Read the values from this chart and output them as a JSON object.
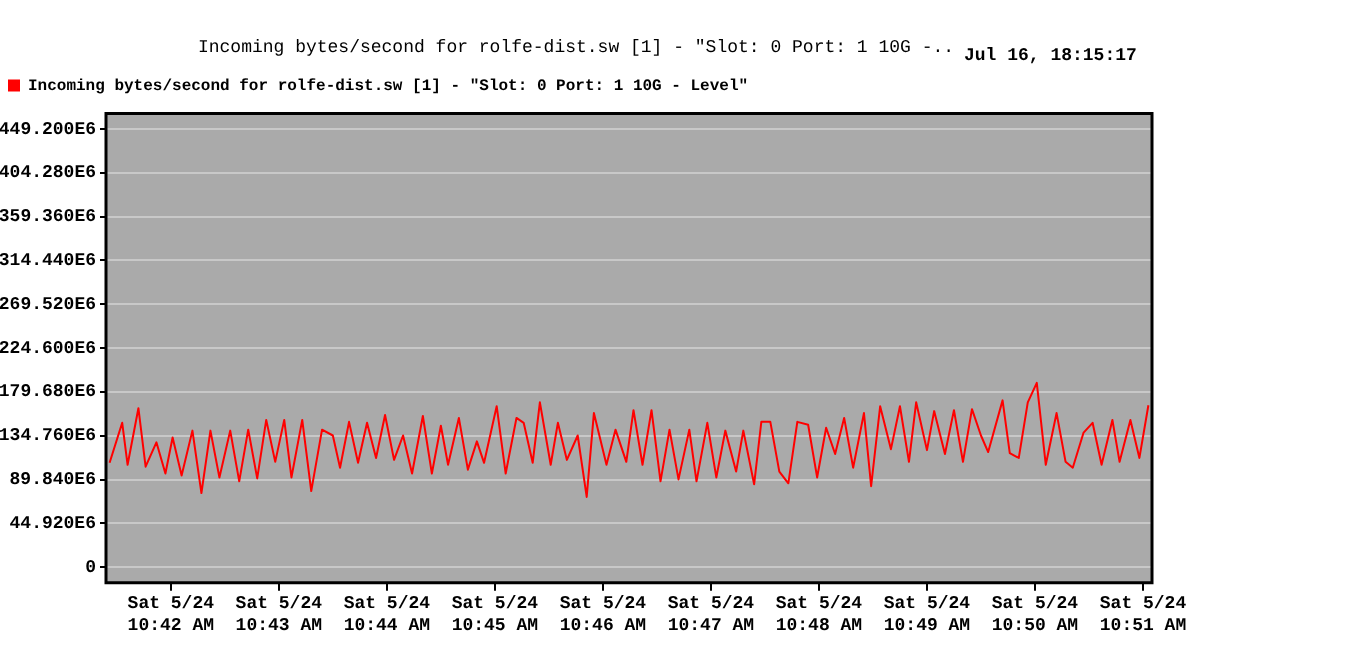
{
  "chart_data": {
    "type": "line",
    "title": "Incoming bytes/second for rolfe-dist.sw [1] - \"Slot: 0 Port: 1 10G -..",
    "annotations": [
      "Jul 16, 18:15:17"
    ],
    "xlim": [
      "--05-24T10:41:24",
      "--05-24T10:51:05"
    ],
    "xticks": [
      {
        "value": "--05-24T10:42",
        "label": "Sat 5/24\n10:42 AM"
      },
      {
        "value": "--05-24T10:43",
        "label": "Sat 5/24\n10:43 AM"
      },
      {
        "value": "--05-24T10:44",
        "label": "Sat 5/24\n10:44 AM"
      },
      {
        "value": "--05-24T10:45",
        "label": "Sat 5/24\n10:45 AM"
      },
      {
        "value": "--05-24T10:46",
        "label": "Sat 5/24\n10:46 AM"
      },
      {
        "value": "--05-24T10:47",
        "label": "Sat 5/24\n10:47 AM"
      },
      {
        "value": "--05-24T10:48",
        "label": "Sat 5/24\n10:48 AM"
      },
      {
        "value": "--05-24T10:49",
        "label": "Sat 5/24\n10:49 AM"
      },
      {
        "value": "--05-24T10:50",
        "label": "Sat 5/24\n10:50 AM"
      },
      {
        "value": "--05-24T10:51",
        "label": "Sat 5/24\n10:51 AM"
      }
    ],
    "ylim": [
      -16000000.0,
      465000000.0
    ],
    "yticks": [
      0,
      {
        "value": 44920000.0,
        "label": "44.920E6"
      },
      {
        "value": 89840000.0,
        "label": "89.840E6"
      },
      {
        "value": 134760000.0,
        "label": "134.760E6"
      },
      {
        "value": 179680000.0,
        "label": "179.680E6"
      },
      {
        "value": 224600000.0,
        "label": "224.600E6"
      },
      {
        "value": 269520000.0,
        "label": "269.520E6"
      },
      {
        "value": 314440000.0,
        "label": "314.440E6"
      },
      {
        "value": 359360000.0,
        "label": "359.360E6"
      },
      {
        "value": 404280000.0,
        "label": "404.280E6"
      },
      {
        "value": 449200000.0,
        "label": "449.200E6"
      }
    ],
    "grid": "y",
    "legend": "top left",
    "marker": "none",
    "line_style": "solid",
    "x": [
      "--05-24T10:41:26",
      "--05-24T10:41:33",
      "--05-24T10:41:36",
      "--05-24T10:41:42",
      "--05-24T10:41:46",
      "--05-24T10:41:52",
      "--05-24T10:41:57",
      "--05-24T10:42:01",
      "--05-24T10:42:06",
      "--05-24T10:42:12",
      "--05-24T10:42:17",
      "--05-24T10:42:22",
      "--05-24T10:42:27",
      "--05-24T10:42:33",
      "--05-24T10:42:38",
      "--05-24T10:42:43",
      "--05-24T10:42:48",
      "--05-24T10:42:53",
      "--05-24T10:42:58",
      "--05-24T10:43:03",
      "--05-24T10:43:07",
      "--05-24T10:43:13",
      "--05-24T10:43:18",
      "--05-24T10:43:24",
      "--05-24T10:43:30",
      "--05-24T10:43:34",
      "--05-24T10:43:39",
      "--05-24T10:43:44",
      "--05-24T10:43:49",
      "--05-24T10:43:54",
      "--05-24T10:43:59",
      "--05-24T10:44:04",
      "--05-24T10:44:09",
      "--05-24T10:44:14",
      "--05-24T10:44:20",
      "--05-24T10:44:25",
      "--05-24T10:44:30",
      "--05-24T10:44:34",
      "--05-24T10:44:40",
      "--05-24T10:44:45",
      "--05-24T10:44:50",
      "--05-24T10:44:54",
      "--05-24T10:45:01",
      "--05-24T10:45:06",
      "--05-24T10:45:12",
      "--05-24T10:45:16",
      "--05-24T10:45:21",
      "--05-24T10:45:25",
      "--05-24T10:45:31",
      "--05-24T10:45:35",
      "--05-24T10:45:40",
      "--05-24T10:45:46",
      "--05-24T10:45:51",
      "--05-24T10:45:55",
      "--05-24T10:46:02",
      "--05-24T10:46:07",
      "--05-24T10:46:13",
      "--05-24T10:46:17",
      "--05-24T10:46:22",
      "--05-24T10:46:27",
      "--05-24T10:46:32",
      "--05-24T10:46:37",
      "--05-24T10:46:42",
      "--05-24T10:46:48",
      "--05-24T10:46:52",
      "--05-24T10:46:58",
      "--05-24T10:47:03",
      "--05-24T10:47:08",
      "--05-24T10:47:14",
      "--05-24T10:47:18",
      "--05-24T10:47:24",
      "--05-24T10:47:28",
      "--05-24T10:47:33",
      "--05-24T10:47:38",
      "--05-24T10:47:43",
      "--05-24T10:47:48",
      "--05-24T10:47:54",
      "--05-24T10:47:59",
      "--05-24T10:48:04",
      "--05-24T10:48:09",
      "--05-24T10:48:14",
      "--05-24T10:48:19",
      "--05-24T10:48:25",
      "--05-24T10:48:29",
      "--05-24T10:48:34",
      "--05-24T10:48:40",
      "--05-24T10:48:45",
      "--05-24T10:48:50",
      "--05-24T10:48:54",
      "--05-24T10:49:00",
      "--05-24T10:49:04",
      "--05-24T10:49:10",
      "--05-24T10:49:15",
      "--05-24T10:49:20",
      "--05-24T10:49:25",
      "--05-24T10:49:30",
      "--05-24T10:49:34",
      "--05-24T10:49:42",
      "--05-24T10:49:46",
      "--05-24T10:49:51",
      "--05-24T10:49:56",
      "--05-24T10:50:01",
      "--05-24T10:50:06",
      "--05-24T10:50:12",
      "--05-24T10:50:17",
      "--05-24T10:50:21",
      "--05-24T10:50:27",
      "--05-24T10:50:32",
      "--05-24T10:50:37",
      "--05-24T10:50:43",
      "--05-24T10:50:47",
      "--05-24T10:50:53",
      "--05-24T10:50:58",
      "--05-24T10:51:03"
    ],
    "series": [
      {
        "name": "Incoming bytes/second for rolfe-dist.sw [1] - \"Slot: 0 Port: 1 10G - Level\"",
        "color": "#ff0000",
        "values": [
          107000000.0,
          148000000.0,
          105000000.0,
          163000000.0,
          103000000.0,
          128000000.0,
          96000000.0,
          133000000.0,
          94000000.0,
          140000000.0,
          76000000.0,
          140000000.0,
          92000000.0,
          140000000.0,
          88000000.0,
          141000000.0,
          91000000.0,
          151000000.0,
          108000000.0,
          151000000.0,
          92000000.0,
          151000000.0,
          78000000.0,
          141000000.0,
          135000000.0,
          102000000.0,
          149000000.0,
          107000000.0,
          148000000.0,
          112000000.0,
          156000000.0,
          110000000.0,
          135000000.0,
          96000000.0,
          155000000.0,
          96000000.0,
          145000000.0,
          105000000.0,
          153000000.0,
          100000000.0,
          129000000.0,
          107000000.0,
          165000000.0,
          96000000.0,
          153000000.0,
          148000000.0,
          107000000.0,
          169000000.0,
          105000000.0,
          148000000.0,
          110000000.0,
          135000000.0,
          72000000.0,
          158000000.0,
          105000000.0,
          141000000.0,
          108000000.0,
          161000000.0,
          105000000.0,
          161000000.0,
          88000000.0,
          141000000.0,
          90000000.0,
          141000000.0,
          88000000.0,
          148000000.0,
          92000000.0,
          140000000.0,
          98000000.0,
          140000000.0,
          85000000.0,
          149000000.0,
          149000000.0,
          98000000.0,
          86000000.0,
          149000000.0,
          146000000.0,
          92000000.0,
          143000000.0,
          116000000.0,
          153000000.0,
          102000000.0,
          158000000.0,
          83000000.0,
          165000000.0,
          121000000.0,
          165000000.0,
          108000000.0,
          169000000.0,
          120000000.0,
          160000000.0,
          116000000.0,
          161000000.0,
          108000000.0,
          162000000.0,
          135000000.0,
          118000000.0,
          171000000.0,
          117000000.0,
          112000000.0,
          169000000.0,
          189000000.0,
          105000000.0,
          158000000.0,
          108000000.0,
          102000000.0,
          138000000.0,
          148000000.0,
          105000000.0,
          151000000.0,
          108000000.0,
          151000000.0,
          112000000.0,
          166000000.0
        ]
      }
    ]
  }
}
